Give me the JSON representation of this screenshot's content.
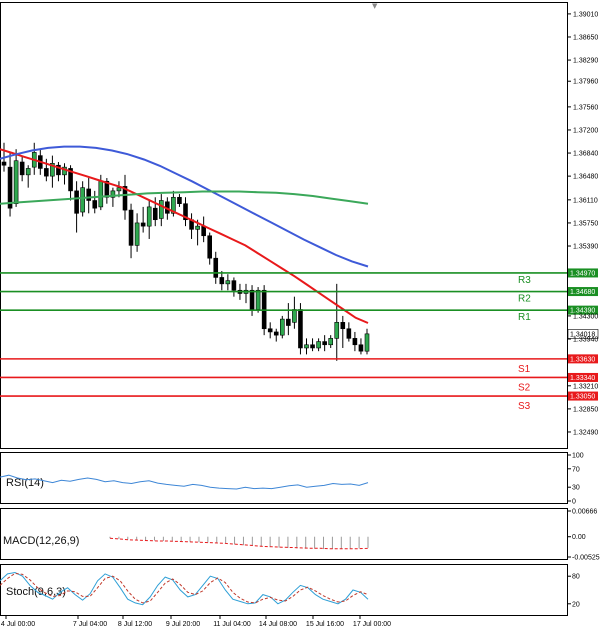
{
  "chart_data": [
    {
      "type": "candlestick",
      "title": "",
      "y_ticks": [
        "1.39010",
        "1.38650",
        "1.38290",
        "1.37960",
        "1.37560",
        "1.37200",
        "1.36840",
        "1.36480",
        "1.36110",
        "1.35750",
        "1.35390",
        "1.34300",
        "1.33940",
        "1.33210",
        "1.32850",
        "1.32490"
      ],
      "x_ticks": [
        "4 Jul 00:00",
        "7 Jul 04:00",
        "8 Jul 12:00",
        "9 Jul 20:00",
        "11 Jul 04:00",
        "14 Jul 08:00",
        "15 Jul 16:00",
        "17 Jul 00:00"
      ],
      "ylim": [
        1.3224,
        1.3918
      ],
      "current_price": "1.34018",
      "candles": [
        [
          1.367,
          1.37,
          1.3655,
          1.3665
        ],
        [
          1.3662,
          1.3685,
          1.3585,
          1.3598
        ],
        [
          1.3605,
          1.369,
          1.36,
          1.3672
        ],
        [
          1.367,
          1.368,
          1.364,
          1.365
        ],
        [
          1.365,
          1.3665,
          1.363,
          1.366
        ],
        [
          1.3662,
          1.37,
          1.365,
          1.3685
        ],
        [
          1.368,
          1.369,
          1.365,
          1.366
        ],
        [
          1.366,
          1.3675,
          1.364,
          1.3648
        ],
        [
          1.3648,
          1.368,
          1.363,
          1.3668
        ],
        [
          1.3665,
          1.367,
          1.364,
          1.365
        ],
        [
          1.365,
          1.3668,
          1.3635,
          1.3662
        ],
        [
          1.366,
          1.3665,
          1.361,
          1.3625
        ],
        [
          1.3625,
          1.364,
          1.356,
          1.359
        ],
        [
          1.3592,
          1.364,
          1.3585,
          1.363
        ],
        [
          1.3628,
          1.3645,
          1.359,
          1.361
        ],
        [
          1.361,
          1.3625,
          1.359,
          1.3598
        ],
        [
          1.36,
          1.365,
          1.3595,
          1.364
        ],
        [
          1.364,
          1.3645,
          1.3605,
          1.3615
        ],
        [
          1.3615,
          1.363,
          1.36,
          1.3625
        ],
        [
          1.3625,
          1.364,
          1.3615,
          1.363
        ],
        [
          1.3632,
          1.365,
          1.358,
          1.3595
        ],
        [
          1.3595,
          1.3605,
          1.352,
          1.354
        ],
        [
          1.354,
          1.359,
          1.353,
          1.3575
        ],
        [
          1.3575,
          1.36,
          1.356,
          1.357
        ],
        [
          1.357,
          1.361,
          1.355,
          1.36
        ],
        [
          1.3598,
          1.3615,
          1.357,
          1.358
        ],
        [
          1.3582,
          1.362,
          1.357,
          1.361
        ],
        [
          1.3608,
          1.3615,
          1.358,
          1.359
        ],
        [
          1.359,
          1.3625,
          1.3585,
          1.3615
        ],
        [
          1.3615,
          1.362,
          1.36,
          1.3605
        ],
        [
          1.3605,
          1.3615,
          1.357,
          1.358
        ],
        [
          1.358,
          1.359,
          1.355,
          1.3565
        ],
        [
          1.3565,
          1.358,
          1.354,
          1.357
        ],
        [
          1.357,
          1.3585,
          1.3545,
          1.3555
        ],
        [
          1.3555,
          1.356,
          1.351,
          1.352
        ],
        [
          1.352,
          1.353,
          1.348,
          1.349
        ],
        [
          1.349,
          1.35,
          1.347,
          1.348
        ],
        [
          1.348,
          1.3495,
          1.347,
          1.3485
        ],
        [
          1.3485,
          1.349,
          1.346,
          1.347
        ],
        [
          1.347,
          1.348,
          1.3455,
          1.3465
        ],
        [
          1.3465,
          1.348,
          1.345,
          1.347
        ],
        [
          1.347,
          1.3478,
          1.343,
          1.344
        ],
        [
          1.344,
          1.3475,
          1.3435,
          1.347
        ],
        [
          1.347,
          1.3478,
          1.34,
          1.341
        ],
        [
          1.341,
          1.342,
          1.3395,
          1.3405
        ],
        [
          1.3405,
          1.341,
          1.339,
          1.34
        ],
        [
          1.34,
          1.343,
          1.3395,
          1.3425
        ],
        [
          1.3425,
          1.345,
          1.34,
          1.3415
        ],
        [
          1.342,
          1.346,
          1.341,
          1.344
        ],
        [
          1.344,
          1.345,
          1.337,
          1.338
        ],
        [
          1.338,
          1.3395,
          1.337,
          1.3385
        ],
        [
          1.3385,
          1.3395,
          1.3375,
          1.338
        ],
        [
          1.338,
          1.3395,
          1.3375,
          1.339
        ],
        [
          1.339,
          1.34,
          1.3375,
          1.3385
        ],
        [
          1.3385,
          1.34,
          1.338,
          1.3395
        ],
        [
          1.3395,
          1.348,
          1.336,
          1.342
        ],
        [
          1.342,
          1.343,
          1.338,
          1.341
        ],
        [
          1.341,
          1.342,
          1.339,
          1.3395
        ],
        [
          1.3395,
          1.3405,
          1.3375,
          1.3385
        ],
        [
          1.3385,
          1.3395,
          1.337,
          1.3375
        ],
        [
          1.3375,
          1.341,
          1.337,
          1.3402
        ]
      ],
      "ma_series": [
        {
          "color": "#e8191b",
          "values": [
            1.369,
            1.3684,
            1.3678,
            1.3672,
            1.3666,
            1.366,
            1.3654,
            1.3648,
            1.3642,
            1.3636,
            1.363,
            1.3621,
            1.3612,
            1.3603,
            1.3594,
            1.3585,
            1.3576,
            1.3567,
            1.3558,
            1.3549,
            1.354,
            1.3528,
            1.3516,
            1.3504,
            1.3492,
            1.3479,
            1.3466,
            1.3453,
            1.344,
            1.3427,
            1.3419
          ]
        },
        {
          "color": "#3e5ad8",
          "values": [
            1.3675,
            1.3682,
            1.3688,
            1.3692,
            1.3694,
            1.3694,
            1.3692,
            1.3688,
            1.3682,
            1.3674,
            1.3664,
            1.3652,
            1.364,
            1.3627,
            1.3614,
            1.3601,
            1.3588,
            1.3575,
            1.3562,
            1.3549,
            1.3537,
            1.3525,
            1.3515,
            1.3507
          ]
        },
        {
          "color": "#3ba85a",
          "values": [
            1.3605,
            1.3607,
            1.3609,
            1.3611,
            1.3613,
            1.3615,
            1.3617,
            1.3619,
            1.3621,
            1.3622,
            1.3623,
            1.3624,
            1.3624,
            1.3624,
            1.3623,
            1.3622,
            1.362,
            1.3617,
            1.3613,
            1.3609,
            1.3605
          ]
        }
      ],
      "levels": [
        {
          "name": "R3",
          "value": "1.34970",
          "color": "#1a8f23"
        },
        {
          "name": "R2",
          "value": "1.34680",
          "color": "#1a8f23"
        },
        {
          "name": "R1",
          "value": "1.34390",
          "color": "#1a8f23"
        },
        {
          "name": "S1",
          "value": "1.33630",
          "color": "#e8191b"
        },
        {
          "name": "S2",
          "value": "1.33340",
          "color": "#e8191b"
        },
        {
          "name": "S3",
          "value": "1.33050",
          "color": "#e8191b"
        }
      ]
    },
    {
      "type": "line",
      "title": "RSI(14)",
      "y_ticks": [
        "100",
        "70",
        "30",
        "0"
      ],
      "ylim": [
        0,
        100
      ],
      "series": [
        {
          "color": "#3d86d6",
          "values": [
            52,
            56,
            50,
            46,
            48,
            44,
            40,
            45,
            43,
            47,
            50,
            47,
            42,
            44,
            40,
            38,
            42,
            44,
            39,
            36,
            34,
            32,
            36,
            34,
            30,
            28,
            27,
            26,
            30,
            27,
            28,
            27,
            30,
            33,
            35,
            30,
            32,
            34,
            38,
            36,
            37,
            34,
            40
          ]
        }
      ]
    },
    {
      "type": "line",
      "title": "MACD(12,26,9)",
      "y_ticks": [
        "0.00666",
        "0.00",
        "-0.00525"
      ],
      "ylim": [
        -0.00525,
        0.00666
      ],
      "series": [
        {
          "color": "#e8191b",
          "values": [
            -0.0004,
            -0.0006,
            -0.0008,
            -0.0009,
            -0.001,
            -0.0011,
            -0.0011,
            -0.0012,
            -0.0013,
            -0.0014,
            -0.0015,
            -0.0016,
            -0.0017,
            -0.0019,
            -0.0021,
            -0.0023,
            -0.0025,
            -0.0026,
            -0.0027,
            -0.0028,
            -0.0029,
            -0.003,
            -0.003,
            -0.0031,
            -0.0031,
            -0.0031,
            -0.0031,
            -0.003
          ]
        }
      ],
      "histogram": [
        -0.0004,
        -0.0006,
        -0.0007,
        -0.0008,
        -0.0009,
        -0.001,
        -0.0011,
        -0.0011,
        -0.0012,
        -0.0013,
        -0.0014,
        -0.0015,
        -0.0016,
        -0.0018,
        -0.002,
        -0.0022,
        -0.0024,
        -0.0025,
        -0.0027,
        -0.0028,
        -0.0029,
        -0.003,
        -0.0031,
        -0.0031,
        -0.0032,
        -0.0032,
        -0.0031,
        -0.003,
        -0.003,
        -0.0029
      ]
    },
    {
      "type": "line",
      "title": "Stoch(9,6,3)",
      "y_ticks": [
        "80",
        "20"
      ],
      "ylim": [
        0,
        100
      ],
      "series": [
        {
          "color": "#2e9fd6",
          "values": [
            70,
            85,
            88,
            80,
            60,
            45,
            38,
            30,
            45,
            55,
            40,
            28,
            42,
            70,
            85,
            78,
            55,
            30,
            22,
            18,
            35,
            60,
            78,
            72,
            50,
            35,
            40,
            60,
            80,
            75,
            50,
            30,
            25,
            20,
            22,
            40,
            35,
            20,
            28,
            45,
            60,
            55,
            40,
            30,
            25,
            20,
            30,
            50,
            45,
            30
          ]
        },
        {
          "color": "#c0392b",
          "values": [
            60,
            75,
            86,
            84,
            72,
            55,
            44,
            36,
            38,
            48,
            46,
            36,
            36,
            55,
            75,
            80,
            70,
            48,
            30,
            22,
            26,
            45,
            65,
            74,
            62,
            45,
            40,
            48,
            66,
            76,
            66,
            45,
            32,
            24,
            22,
            30,
            34,
            28,
            26,
            36,
            50,
            56,
            48,
            38,
            30,
            24,
            26,
            38,
            46,
            40
          ]
        }
      ]
    }
  ]
}
